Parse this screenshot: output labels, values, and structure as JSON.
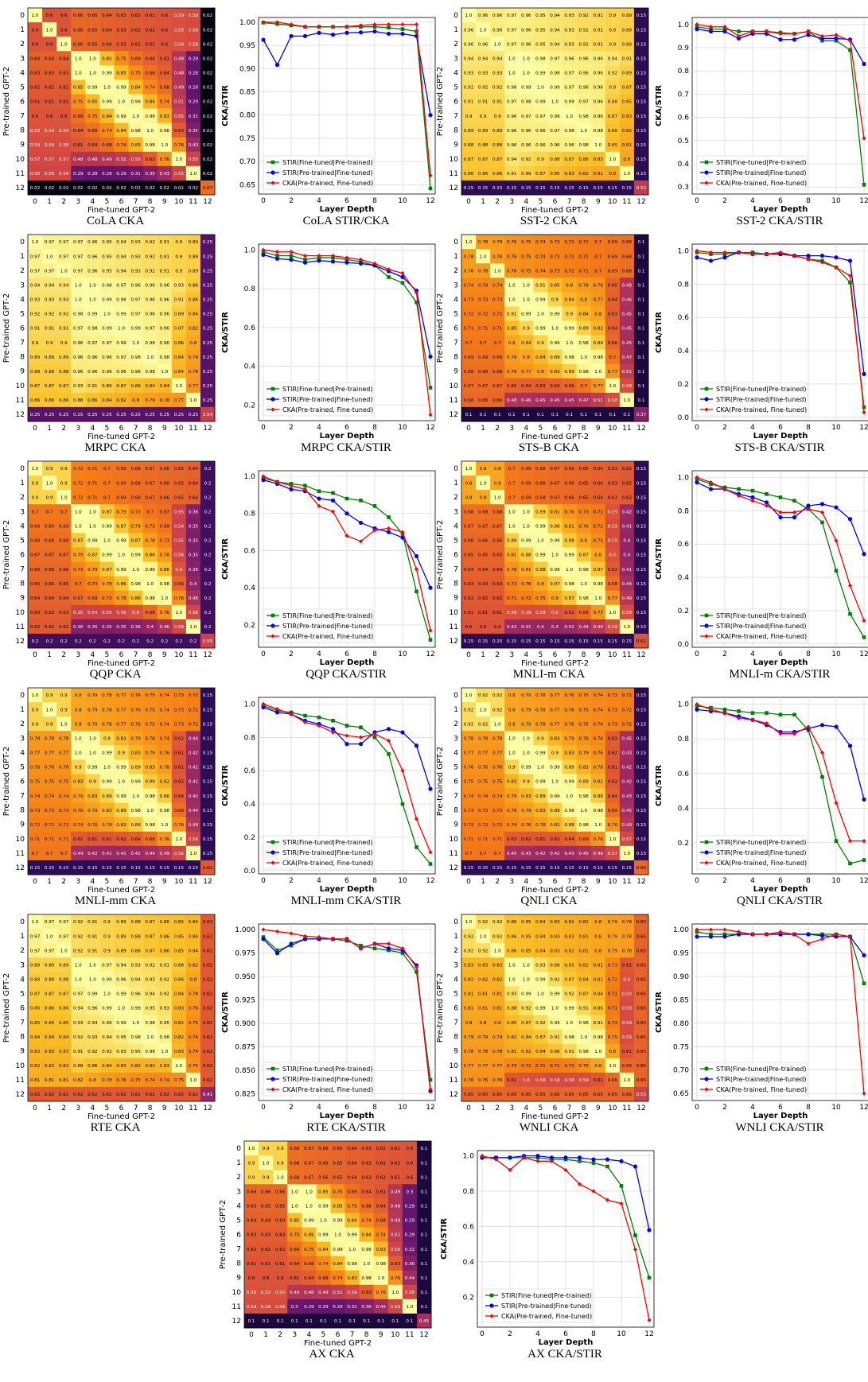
{
  "axes": {
    "heatmap_xlabel": "Fine-tuned GPT-2",
    "heatmap_ylabel": "Pre-trained GPT-2",
    "line_xlabel": "Layer Depth",
    "line_ylabel": "CKA/STIR",
    "layer_ticks": [
      "0",
      "1",
      "2",
      "3",
      "4",
      "5",
      "6",
      "7",
      "8",
      "9",
      "10",
      "11",
      "12"
    ]
  },
  "legend": {
    "stir_ft_pt": "STIR(Fine-tuned|Pre-trained)",
    "stir_pt_ft": "STIR(Pre-trained|Fine-tuned)",
    "cka": "CKA(Pre-trained, Fine-tuned)"
  },
  "series_colors": {
    "stir_ft_pt": "#008000",
    "stir_pt_ft": "#0000ff",
    "cka": "#ff0000"
  },
  "colormap": "inferno",
  "chart_data": [
    {
      "type": "heatmap",
      "caption": "CoLA CKA",
      "profile": {
        "a": 0.999,
        "b": 0.6,
        "c": 0.66,
        "d": 0.55,
        "e": 0.28,
        "l": 0.67,
        "f": 0.02
      }
    },
    {
      "type": "line",
      "caption": "CoLA STIR/CKA",
      "x": [
        0,
        1,
        2,
        3,
        4,
        5,
        6,
        7,
        8,
        9,
        10,
        11,
        12
      ],
      "ylim": [
        0.63,
        1.01
      ],
      "yticks": [
        0.65,
        0.7,
        0.75,
        0.8,
        0.85,
        0.9,
        0.95,
        1.0
      ],
      "legend": "lower-left",
      "series": [
        {
          "key": "stir_ft_pt",
          "values": [
            0.999,
            0.996,
            0.993,
            0.99,
            0.99,
            0.99,
            0.99,
            0.99,
            0.99,
            0.988,
            0.985,
            0.98,
            0.642
          ]
        },
        {
          "key": "stir_pt_ft",
          "values": [
            0.962,
            0.908,
            0.97,
            0.97,
            0.977,
            0.973,
            0.977,
            0.978,
            0.98,
            0.975,
            0.975,
            0.97,
            0.8
          ]
        },
        {
          "key": "cka",
          "values": [
            1.0,
            1.0,
            0.995,
            0.99,
            0.99,
            0.99,
            0.99,
            0.993,
            0.995,
            0.995,
            0.995,
            0.995,
            0.67
          ]
        }
      ]
    },
    {
      "type": "heatmap",
      "caption": "SST-2 CKA",
      "profile": {
        "a": 0.999,
        "b": 0.96,
        "c": 0.97,
        "d": 0.95,
        "e": 0.9,
        "l": 0.52,
        "f": 0.15
      }
    },
    {
      "type": "line",
      "caption": "SST-2 CKA/STIR",
      "x": [
        0,
        1,
        2,
        3,
        4,
        5,
        6,
        7,
        8,
        9,
        10,
        11,
        12
      ],
      "ylim": [
        0.27,
        1.03
      ],
      "yticks": [
        0.3,
        0.4,
        0.5,
        0.6,
        0.7,
        0.8,
        0.9,
        1.0
      ],
      "legend": "lower-left",
      "series": [
        {
          "key": "stir_ft_pt",
          "values": [
            0.99,
            0.98,
            0.98,
            0.97,
            0.97,
            0.97,
            0.965,
            0.96,
            0.97,
            0.93,
            0.93,
            0.89,
            0.31
          ]
        },
        {
          "key": "stir_pt_ft",
          "values": [
            0.98,
            0.97,
            0.97,
            0.94,
            0.96,
            0.96,
            0.935,
            0.935,
            0.955,
            0.94,
            0.94,
            0.935,
            0.83
          ]
        },
        {
          "key": "cka",
          "values": [
            1.0,
            0.99,
            0.99,
            0.95,
            0.97,
            0.97,
            0.96,
            0.96,
            0.97,
            0.95,
            0.955,
            0.93,
            0.51
          ]
        }
      ]
    },
    {
      "type": "heatmap",
      "caption": "MRPC CKA",
      "profile": {
        "a": 0.999,
        "b": 0.97,
        "c": 0.97,
        "d": 0.95,
        "e": 0.82,
        "l": 0.54,
        "f": 0.25
      }
    },
    {
      "type": "line",
      "caption": "MRPC CKA/STIR",
      "x": [
        0,
        1,
        2,
        3,
        4,
        5,
        6,
        7,
        8,
        9,
        10,
        11,
        12
      ],
      "ylim": [
        0.12,
        1.03
      ],
      "yticks": [
        0.2,
        0.4,
        0.6,
        0.8,
        1.0
      ],
      "legend": "lower-left",
      "series": [
        {
          "key": "stir_ft_pt",
          "values": [
            0.99,
            0.97,
            0.97,
            0.95,
            0.96,
            0.96,
            0.95,
            0.94,
            0.92,
            0.86,
            0.83,
            0.73,
            0.29
          ]
        },
        {
          "key": "stir_pt_ft",
          "values": [
            0.975,
            0.955,
            0.95,
            0.935,
            0.945,
            0.94,
            0.935,
            0.93,
            0.92,
            0.89,
            0.86,
            0.79,
            0.45
          ]
        },
        {
          "key": "cka",
          "values": [
            1.0,
            0.99,
            0.99,
            0.97,
            0.97,
            0.97,
            0.96,
            0.95,
            0.93,
            0.9,
            0.88,
            0.78,
            0.15
          ]
        }
      ]
    },
    {
      "type": "heatmap",
      "caption": "STS-B CKA",
      "profile": {
        "a": 0.999,
        "b": 0.78,
        "c": 0.76,
        "d": 0.72,
        "e": 0.35,
        "l": 0.37,
        "f": 0.1
      }
    },
    {
      "type": "line",
      "caption": "STS-B CKA/STIR",
      "x": [
        0,
        1,
        2,
        3,
        4,
        5,
        6,
        7,
        8,
        9,
        10,
        11,
        12
      ],
      "ylim": [
        -0.02,
        1.04
      ],
      "yticks": [
        0.0,
        0.2,
        0.4,
        0.6,
        0.8,
        1.0
      ],
      "legend": "lower-left",
      "series": [
        {
          "key": "stir_ft_pt",
          "values": [
            0.99,
            0.98,
            0.98,
            0.99,
            0.99,
            0.98,
            0.98,
            0.97,
            0.95,
            0.94,
            0.9,
            0.81,
            0.06
          ]
        },
        {
          "key": "stir_pt_ft",
          "values": [
            0.96,
            0.94,
            0.96,
            0.99,
            0.98,
            0.98,
            0.98,
            0.97,
            0.97,
            0.97,
            0.96,
            0.94,
            0.26
          ]
        },
        {
          "key": "cka",
          "values": [
            1.0,
            0.99,
            0.99,
            0.99,
            0.98,
            0.98,
            0.99,
            0.97,
            0.95,
            0.93,
            0.9,
            0.85,
            0.03
          ]
        }
      ]
    },
    {
      "type": "heatmap",
      "caption": "QQP CKA",
      "profile": {
        "a": 0.999,
        "b": 0.9,
        "c": 0.72,
        "d": 0.62,
        "e": 0.3,
        "l": 0.55,
        "f": 0.2
      }
    },
    {
      "type": "line",
      "caption": "QQP CKA/STIR",
      "x": [
        0,
        1,
        2,
        3,
        4,
        5,
        6,
        7,
        8,
        9,
        10,
        11,
        12
      ],
      "ylim": [
        0.08,
        1.03
      ],
      "yticks": [
        0.2,
        0.4,
        0.6,
        0.8,
        1.0
      ],
      "legend": "lower-left",
      "series": [
        {
          "key": "stir_ft_pt",
          "values": [
            0.99,
            0.97,
            0.96,
            0.95,
            0.92,
            0.91,
            0.88,
            0.87,
            0.84,
            0.78,
            0.69,
            0.38,
            0.12
          ]
        },
        {
          "key": "stir_pt_ft",
          "values": [
            0.98,
            0.96,
            0.93,
            0.92,
            0.88,
            0.87,
            0.8,
            0.75,
            0.72,
            0.7,
            0.67,
            0.57,
            0.4
          ]
        },
        {
          "key": "cka",
          "values": [
            1.0,
            0.97,
            0.95,
            0.93,
            0.84,
            0.81,
            0.68,
            0.65,
            0.71,
            0.72,
            0.7,
            0.5,
            0.17
          ]
        }
      ]
    },
    {
      "type": "heatmap",
      "caption": "MNLI-m CKA",
      "profile": {
        "a": 0.999,
        "b": 0.8,
        "c": 0.7,
        "d": 0.66,
        "e": 0.35,
        "l": 0.61,
        "f": 0.15
      }
    },
    {
      "type": "line",
      "caption": "MNLI-m CKA/STIR",
      "x": [
        0,
        1,
        2,
        3,
        4,
        5,
        6,
        7,
        8,
        9,
        10,
        11,
        12
      ],
      "ylim": [
        -0.02,
        1.04
      ],
      "yticks": [
        0.0,
        0.2,
        0.4,
        0.6,
        0.8,
        1.0
      ],
      "legend": "lower-left",
      "series": [
        {
          "key": "stir_ft_pt",
          "values": [
            0.99,
            0.96,
            0.94,
            0.93,
            0.92,
            0.9,
            0.88,
            0.86,
            0.81,
            0.73,
            0.44,
            0.18,
            0.04
          ]
        },
        {
          "key": "stir_pt_ft",
          "values": [
            0.97,
            0.93,
            0.93,
            0.9,
            0.88,
            0.85,
            0.76,
            0.76,
            0.83,
            0.84,
            0.82,
            0.75,
            0.54
          ]
        },
        {
          "key": "cka",
          "values": [
            1.0,
            0.97,
            0.93,
            0.89,
            0.86,
            0.83,
            0.79,
            0.79,
            0.81,
            0.79,
            0.62,
            0.35,
            0.14
          ]
        }
      ]
    },
    {
      "type": "heatmap",
      "caption": "MNLI-mm CKA",
      "profile": {
        "a": 0.999,
        "b": 0.9,
        "c": 0.8,
        "d": 0.7,
        "e": 0.3,
        "l": 0.62,
        "f": 0.15
      }
    },
    {
      "type": "line",
      "caption": "MNLI-mm CKA/STIR",
      "x": [
        0,
        1,
        2,
        3,
        4,
        5,
        6,
        7,
        8,
        9,
        10,
        11,
        12
      ],
      "ylim": [
        -0.02,
        1.04
      ],
      "yticks": [
        0.0,
        0.2,
        0.4,
        0.6,
        0.8,
        1.0
      ],
      "legend": "lower-left",
      "series": [
        {
          "key": "stir_ft_pt",
          "values": [
            0.99,
            0.96,
            0.95,
            0.93,
            0.92,
            0.9,
            0.87,
            0.86,
            0.8,
            0.7,
            0.4,
            0.14,
            0.04
          ]
        },
        {
          "key": "stir_pt_ft",
          "values": [
            0.98,
            0.95,
            0.94,
            0.9,
            0.88,
            0.85,
            0.76,
            0.76,
            0.83,
            0.85,
            0.83,
            0.75,
            0.49
          ]
        },
        {
          "key": "cka",
          "values": [
            1.0,
            0.97,
            0.94,
            0.89,
            0.87,
            0.83,
            0.81,
            0.8,
            0.82,
            0.78,
            0.6,
            0.31,
            0.11
          ]
        }
      ]
    },
    {
      "type": "heatmap",
      "caption": "QNLI CKA",
      "profile": {
        "a": 0.999,
        "b": 0.92,
        "c": 0.8,
        "d": 0.7,
        "e": 0.32,
        "l": 0.66,
        "f": 0.15
      }
    },
    {
      "type": "line",
      "caption": "QNLI CKA/STIR",
      "x": [
        0,
        1,
        2,
        3,
        4,
        5,
        6,
        7,
        8,
        9,
        10,
        11,
        12
      ],
      "ylim": [
        0.02,
        1.04
      ],
      "yticks": [
        0.2,
        0.4,
        0.6,
        0.8,
        1.0
      ],
      "legend": "lower-left",
      "series": [
        {
          "key": "stir_ft_pt",
          "values": [
            0.99,
            0.98,
            0.97,
            0.96,
            0.95,
            0.95,
            0.94,
            0.94,
            0.85,
            0.58,
            0.21,
            0.08,
            0.1
          ]
        },
        {
          "key": "stir_pt_ft",
          "values": [
            0.97,
            0.96,
            0.95,
            0.93,
            0.91,
            0.88,
            0.84,
            0.84,
            0.86,
            0.88,
            0.87,
            0.76,
            0.45
          ]
        },
        {
          "key": "cka",
          "values": [
            1.0,
            0.97,
            0.95,
            0.92,
            0.91,
            0.89,
            0.83,
            0.83,
            0.87,
            0.72,
            0.43,
            0.21,
            0.21
          ]
        }
      ]
    },
    {
      "type": "heatmap",
      "caption": "RTE CKA",
      "profile": {
        "a": 0.999,
        "b": 0.97,
        "c": 0.92,
        "d": 0.9,
        "e": 0.78,
        "l": 0.41,
        "f": 0.62
      }
    },
    {
      "type": "line",
      "caption": "RTE CKA/STIR",
      "x": [
        0,
        1,
        2,
        3,
        4,
        5,
        6,
        7,
        8,
        9,
        10,
        11,
        12
      ],
      "ylim": [
        0.818,
        1.006
      ],
      "yticks": [
        0.825,
        0.85,
        0.875,
        0.9,
        0.925,
        0.95,
        0.975,
        1.0
      ],
      "legend": "lower-left",
      "series": [
        {
          "key": "stir_ft_pt",
          "values": [
            0.992,
            0.978,
            0.983,
            0.99,
            0.99,
            0.99,
            0.988,
            0.983,
            0.98,
            0.978,
            0.975,
            0.955,
            0.84
          ]
        },
        {
          "key": "stir_pt_ft",
          "values": [
            0.99,
            0.975,
            0.985,
            0.99,
            0.99,
            0.99,
            0.99,
            0.98,
            0.985,
            0.98,
            0.978,
            0.962,
            0.828
          ]
        },
        {
          "key": "cka",
          "values": [
            1.0,
            0.998,
            0.996,
            0.993,
            0.992,
            0.99,
            0.99,
            0.98,
            0.985,
            0.985,
            0.98,
            0.96,
            0.83
          ]
        }
      ]
    },
    {
      "type": "heatmap",
      "caption": "WNLI CKA",
      "profile": {
        "a": 0.999,
        "b": 0.92,
        "c": 0.86,
        "d": 0.78,
        "e": 0.55,
        "l": 0.55,
        "f": 0.65
      }
    },
    {
      "type": "line",
      "caption": "WNLI CKA/STIR",
      "x": [
        0,
        1,
        2,
        3,
        4,
        5,
        6,
        7,
        8,
        9,
        10,
        11,
        12
      ],
      "ylim": [
        0.635,
        1.012
      ],
      "yticks": [
        0.65,
        0.7,
        0.75,
        0.8,
        0.85,
        0.9,
        0.95,
        1.0
      ],
      "legend": "lower-left",
      "series": [
        {
          "key": "stir_ft_pt",
          "values": [
            0.995,
            0.99,
            0.99,
            0.99,
            0.99,
            0.99,
            0.99,
            0.99,
            0.99,
            0.99,
            0.99,
            0.985,
            0.885
          ]
        },
        {
          "key": "stir_pt_ft",
          "values": [
            0.985,
            0.985,
            0.985,
            0.99,
            0.99,
            0.99,
            0.99,
            0.99,
            0.99,
            0.987,
            0.985,
            0.985,
            0.945
          ]
        },
        {
          "key": "cka",
          "values": [
            1.0,
            1.0,
            1.0,
            0.995,
            0.99,
            0.99,
            0.995,
            0.99,
            0.97,
            0.98,
            0.99,
            0.985,
            0.65
          ]
        }
      ]
    },
    {
      "type": "heatmap",
      "caption": "AX CKA",
      "profile": {
        "a": 0.999,
        "b": 0.9,
        "c": 0.68,
        "d": 0.55,
        "e": 0.3,
        "l": 0.45,
        "f": 0.1
      }
    },
    {
      "type": "line",
      "caption": "AX CKA/STIR",
      "x": [
        0,
        1,
        2,
        3,
        4,
        5,
        6,
        7,
        8,
        9,
        10,
        11,
        12
      ],
      "ylim": [
        0.03,
        1.03
      ],
      "yticks": [
        0.2,
        0.4,
        0.6,
        0.8,
        1.0
      ],
      "legend": "lower-left",
      "series": [
        {
          "key": "stir_ft_pt",
          "values": [
            0.99,
            0.99,
            0.99,
            0.99,
            0.99,
            0.98,
            0.98,
            0.97,
            0.96,
            0.94,
            0.83,
            0.55,
            0.31
          ]
        },
        {
          "key": "stir_pt_ft",
          "values": [
            0.99,
            0.99,
            0.99,
            1.0,
            1.0,
            0.99,
            0.99,
            0.99,
            0.98,
            0.98,
            0.97,
            0.94,
            0.58
          ]
        },
        {
          "key": "cka",
          "values": [
            1.0,
            0.98,
            0.92,
            0.99,
            0.97,
            0.97,
            0.92,
            0.84,
            0.8,
            0.75,
            0.73,
            0.47,
            0.07
          ]
        }
      ]
    }
  ]
}
